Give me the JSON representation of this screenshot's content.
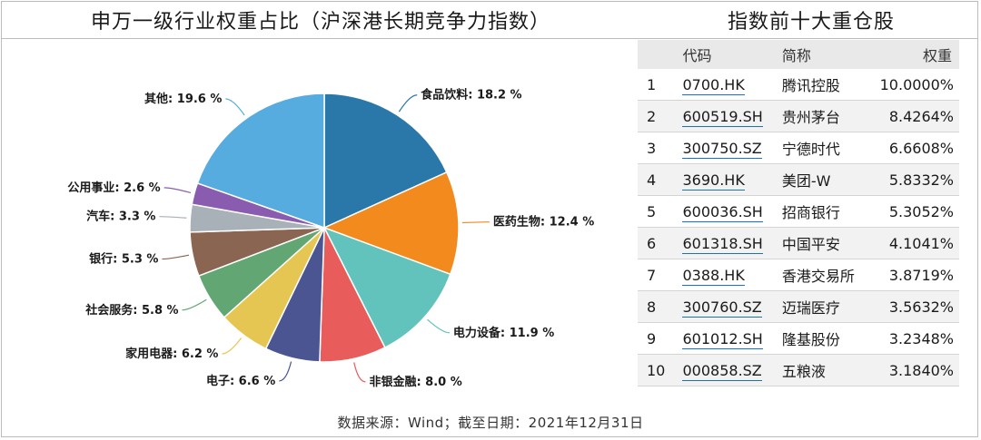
{
  "left_title": "申万一级行业权重占比（沪深港长期竞争力指数）",
  "right_title": "指数前十大重仓股",
  "source_note": "数据来源：Wind；截至日期：2021年12月31日",
  "chart_data": {
    "type": "pie",
    "title": "申万一级行业权重占比（沪深港长期竞争力指数）",
    "unit": "%",
    "slices": [
      {
        "label": "食品饮料",
        "value": 18.2,
        "text": "食品饮料: 18.2 %",
        "color": "#2a77a9"
      },
      {
        "label": "医药生物",
        "value": 12.4,
        "text": "医药生物: 12.4 %",
        "color": "#f28a1d"
      },
      {
        "label": "电力设备",
        "value": 11.9,
        "text": "电力设备: 11.9 %",
        "color": "#62c3bc"
      },
      {
        "label": "非银金融",
        "value": 8.0,
        "text": "非银金融: 8.0 %",
        "color": "#e85c5c"
      },
      {
        "label": "电子",
        "value": 6.6,
        "text": "电子: 6.6 %",
        "color": "#4a5591"
      },
      {
        "label": "家用电器",
        "value": 6.2,
        "text": "家用电器: 6.2 %",
        "color": "#e6c652"
      },
      {
        "label": "社会服务",
        "value": 5.8,
        "text": "社会服务: 5.8 %",
        "color": "#61a673"
      },
      {
        "label": "银行",
        "value": 5.3,
        "text": "银行: 5.3 %",
        "color": "#8a6552"
      },
      {
        "label": "汽车",
        "value": 3.3,
        "text": "汽车: 3.3 %",
        "color": "#a8b0b8"
      },
      {
        "label": "公用事业",
        "value": 2.6,
        "text": "公用事业: 2.6 %",
        "color": "#8a5cb0"
      },
      {
        "label": "其他",
        "value": 19.6,
        "text": "其他: 19.6 %",
        "color": "#56acde"
      }
    ]
  },
  "table": {
    "headers": [
      "",
      "代码",
      "简称",
      "权重"
    ],
    "rows": [
      [
        "1",
        "0700.HK",
        "腾讯控股",
        "10.0000%"
      ],
      [
        "2",
        "600519.SH",
        "贵州茅台",
        "8.4264%"
      ],
      [
        "3",
        "300750.SZ",
        "宁德时代",
        "6.6608%"
      ],
      [
        "4",
        "3690.HK",
        "美团-W",
        "5.8332%"
      ],
      [
        "5",
        "600036.SH",
        "招商银行",
        "5.3052%"
      ],
      [
        "6",
        "601318.SH",
        "中国平安",
        "4.1041%"
      ],
      [
        "7",
        "0388.HK",
        "香港交易所",
        "3.8719%"
      ],
      [
        "8",
        "300760.SZ",
        "迈瑞医疗",
        "3.5632%"
      ],
      [
        "9",
        "601012.SH",
        "隆基股份",
        "3.2348%"
      ],
      [
        "10",
        "000858.SZ",
        "五粮液",
        "3.1840%"
      ]
    ]
  }
}
